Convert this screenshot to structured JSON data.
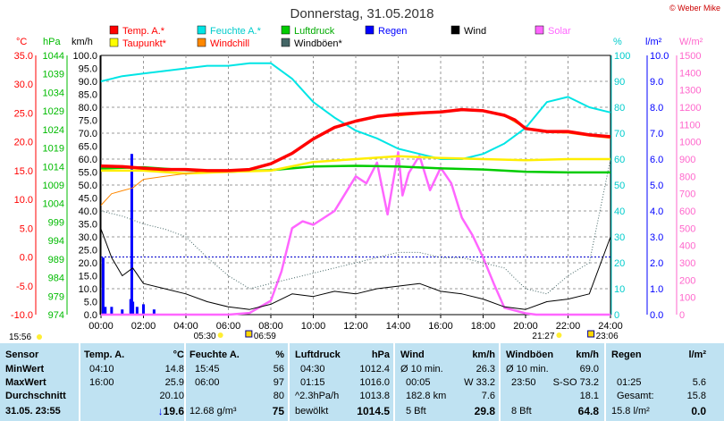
{
  "copyright": "© Weber Mike",
  "chart_data": {
    "type": "line",
    "title": "Donnerstag, 31.05.2018",
    "x_labels": [
      "00:00",
      "02:00",
      "04:00",
      "06:00",
      "08:00",
      "10:00",
      "12:00",
      "14:00",
      "16:00",
      "18:00",
      "20:00",
      "22:00",
      "24:00"
    ],
    "axes": {
      "temp_c": {
        "label": "°C",
        "min": -10,
        "max": 35,
        "step": 5,
        "color": "#ff0000"
      },
      "pressure_hpa": {
        "label": "hPa",
        "min": 974,
        "max": 1044,
        "step": 5,
        "color": "#00bb00"
      },
      "wind_kmh": {
        "label": "km/h",
        "min": 0,
        "max": 100,
        "step": 5,
        "color": "#000000"
      },
      "humidity_pct": {
        "label": "%",
        "min": 0,
        "max": 100,
        "step": 10,
        "color": "#00cccc"
      },
      "rain_lm2": {
        "label": "l/m²",
        "min": 0,
        "max": 10,
        "step": 1,
        "color": "#0000ff"
      },
      "solar_wm2": {
        "label": "W/m²",
        "min": 0,
        "max": 1500,
        "step": 100,
        "color": "#ff66cc"
      }
    },
    "legend": [
      {
        "name": "Temp. A.*",
        "color": "#ff0000"
      },
      {
        "name": "Feuchte A.*",
        "color": "#00e5e5"
      },
      {
        "name": "Luftdruck",
        "color": "#00cc00"
      },
      {
        "name": "Regen",
        "color": "#0000ff"
      },
      {
        "name": "Wind",
        "color": "#000000"
      },
      {
        "name": "Solar",
        "color": "#ff66ff"
      },
      {
        "name": "Taupunkt*",
        "color": "#ffff00"
      },
      {
        "name": "Windchill",
        "color": "#ff8800"
      },
      {
        "name": "Windböen*",
        "color": "#446666"
      }
    ],
    "series": {
      "temp_c": {
        "x": [
          0,
          1,
          2,
          3,
          4,
          5,
          6,
          7,
          8,
          9,
          10,
          11,
          12,
          13,
          14,
          15,
          16,
          17,
          18,
          19,
          19.5,
          20,
          21,
          22,
          23,
          24
        ],
        "values": [
          15.8,
          15.7,
          15.4,
          15.2,
          15.2,
          15.0,
          15.0,
          15.2,
          16.2,
          18.0,
          20.5,
          22.5,
          23.6,
          24.4,
          24.8,
          25.0,
          25.2,
          25.6,
          25.4,
          24.6,
          23.8,
          22.3,
          21.8,
          21.8,
          21.2,
          20.9
        ]
      },
      "dewpoint_c": {
        "x": [
          0,
          2,
          4,
          6,
          8,
          10,
          12,
          14,
          16,
          18,
          20,
          22,
          24
        ],
        "values": [
          15.0,
          15.0,
          14.5,
          14.8,
          15.0,
          16.5,
          17.0,
          17.5,
          17.2,
          17.0,
          16.8,
          17.0,
          17.0
        ]
      },
      "windchill_c": {
        "x": [
          0,
          0.5,
          1,
          1.5,
          2,
          3,
          4,
          5,
          6,
          7,
          8,
          9,
          10,
          11,
          12,
          13,
          14,
          15,
          16,
          17,
          18,
          19,
          20,
          21,
          22,
          23,
          24
        ],
        "values": [
          9.0,
          11.0,
          11.5,
          12.0,
          13.5,
          14.0,
          14.5,
          15.0,
          15.0,
          15.2,
          16.2,
          18.0,
          20.5,
          22.5,
          23.6,
          24.4,
          24.5,
          24.8,
          25.2,
          25.6,
          25.4,
          24.5,
          22.3,
          21.6,
          21.5,
          21.0,
          20.6
        ]
      },
      "pressure_hpa": {
        "x": [
          0,
          2,
          4,
          6,
          8,
          10,
          12,
          14,
          16,
          18,
          20,
          22,
          24
        ],
        "values": [
          1013.5,
          1013.8,
          1013.0,
          1012.6,
          1013.0,
          1014.0,
          1014.2,
          1014.0,
          1013.5,
          1013.2,
          1012.6,
          1012.4,
          1012.4
        ]
      },
      "humidity_pct": {
        "x": [
          0,
          1,
          2,
          3,
          4,
          5,
          6,
          7,
          8,
          9,
          10,
          11,
          12,
          13,
          14,
          15,
          16,
          17,
          18,
          19,
          20,
          21,
          22,
          23,
          24
        ],
        "values": [
          90,
          92,
          93,
          94,
          95,
          96,
          96,
          97,
          97,
          91,
          82,
          76,
          71,
          68,
          64,
          62,
          60,
          60,
          62,
          66,
          72,
          82,
          84,
          80,
          78
        ]
      },
      "wind_kmh": {
        "x": [
          0,
          0.5,
          1,
          1.5,
          2,
          3,
          4,
          5,
          6,
          7,
          8,
          9,
          10,
          11,
          12,
          13,
          14,
          15,
          16,
          17,
          18,
          19,
          20,
          21,
          22,
          23,
          24
        ],
        "values": [
          33,
          22,
          15,
          18,
          12,
          10,
          8,
          5,
          3,
          2,
          4,
          8,
          7,
          9,
          8,
          10,
          11,
          12,
          9,
          8,
          6,
          3,
          2,
          5,
          6,
          8,
          30
        ]
      },
      "gusts_kmh": {
        "x": [
          0,
          1,
          2,
          3,
          4,
          5,
          6,
          7,
          8,
          9,
          10,
          11,
          12,
          13,
          14,
          15,
          16,
          17,
          18,
          19,
          20,
          21,
          22,
          23,
          24
        ],
        "values": [
          40,
          38,
          35,
          33,
          30,
          22,
          15,
          10,
          12,
          14,
          16,
          18,
          20,
          22,
          24,
          24,
          22,
          22,
          20,
          18,
          10,
          8,
          15,
          20,
          60
        ]
      },
      "solar_wm2": {
        "x": [
          0,
          6,
          7,
          8,
          8.5,
          9,
          9.5,
          10,
          11,
          12,
          12.5,
          13,
          13.5,
          14,
          14.2,
          14.5,
          15,
          15.5,
          16,
          16.5,
          17,
          17.5,
          18,
          18.5,
          19,
          20,
          20.5,
          21,
          24
        ],
        "values": [
          0,
          0,
          10,
          80,
          250,
          500,
          540,
          520,
          600,
          800,
          760,
          880,
          580,
          940,
          690,
          820,
          920,
          720,
          850,
          760,
          560,
          460,
          330,
          180,
          40,
          8,
          0,
          0,
          0
        ]
      },
      "rain_lm2": {
        "x": [
          0,
          0.1,
          0.2,
          0.5,
          1.0,
          1.4,
          1.45,
          1.5,
          1.7,
          2.0,
          2.5,
          3.0
        ],
        "values": [
          0,
          2.2,
          0.3,
          0.3,
          0.2,
          0.6,
          6.2,
          0.5,
          0.3,
          0.4,
          0.2,
          0.0
        ]
      }
    },
    "sun_events": {
      "sunrise": "05:30",
      "dawn": "06:59",
      "sunset": "21:27",
      "dusk": "23:06"
    },
    "timestamp_left": "15:56"
  },
  "table": {
    "sensor": {
      "header": "Sensor",
      "min": "MinWert",
      "max": "MaxWert",
      "avg": "Durchschnitt",
      "date": "31.05. 23:55"
    },
    "temp": {
      "header": "Temp. A.",
      "unit": "°C",
      "min_time": "04:10",
      "min": "14.8",
      "max_time": "16:00",
      "max": "25.9",
      "avg": "20.10",
      "current": "19.6",
      "trend": "↓"
    },
    "humidity": {
      "header": "Feuchte A.",
      "unit": "%",
      "min_time": "15:45",
      "min": "56",
      "max_time": "06:00",
      "max": "97",
      "avg": "80",
      "abs": "12.68 g/m³",
      "current": "75"
    },
    "pressure": {
      "header": "Luftdruck",
      "unit": "hPa",
      "min_time": "04:30",
      "min": "1012.4",
      "max_time": "01:15",
      "max": "1016.0",
      "trend": "^2.3hPa/h",
      "avg": "1013.8",
      "desc": "bewölkt",
      "current": "1014.5"
    },
    "wind": {
      "header": "Wind",
      "unit": "km/h",
      "r1_label": "Ø 10 min.",
      "r1": "26.3",
      "r2_time": "00:05",
      "r2_dir": "W",
      "r2": "33.2",
      "r3_label": "182.8 km",
      "r3": "7.6",
      "r4_label": "5 Bft",
      "current": "29.8"
    },
    "gusts": {
      "header": "Windböen",
      "unit": "km/h",
      "r1_label": "Ø 10 min.",
      "r1": "69.0",
      "r2_time": "23:50",
      "r2_dir": "S-SO",
      "r2": "73.2",
      "r3": "18.1",
      "r4_label": "8 Bft",
      "current": "64.8"
    },
    "rain": {
      "header": "Regen",
      "unit": "l/m²",
      "r2_time": "01:25",
      "r2": "5.6",
      "r3_label": "Gesamt:",
      "r3": "15.8",
      "current": "15.8 l/m²",
      "current2": "0.0"
    }
  }
}
